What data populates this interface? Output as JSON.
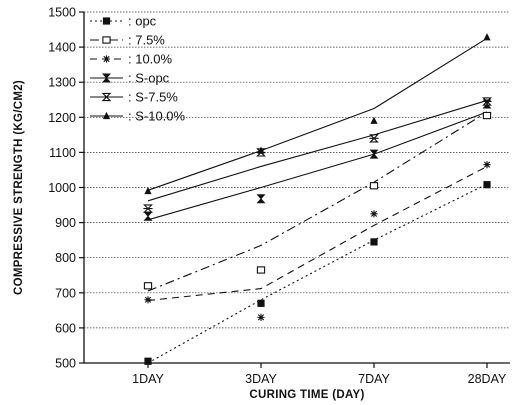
{
  "chart_data": {
    "type": "line",
    "title": "",
    "xlabel": "CURING TIME (DAY)",
    "ylabel": "COMPRESSIVE STRENGTH (KG/CM2)",
    "ylim": [
      500,
      1500
    ],
    "y_ticks": [
      500,
      600,
      700,
      800,
      900,
      1000,
      1100,
      1200,
      1300,
      1400,
      1500
    ],
    "categories": [
      "1DAY",
      "3DAY",
      "7DAY",
      "28DAY"
    ],
    "grid": true,
    "legend_position": "top-left",
    "series": [
      {
        "name": "opc",
        "legend_label": ": opc",
        "marker": "square-filled",
        "line": "dotted",
        "values": [
          505,
          670,
          845,
          1008
        ],
        "fit": [
          500,
          680,
          850,
          1010
        ]
      },
      {
        "name": "7.5%",
        "legend_label": ": 7.5%",
        "marker": "square-open",
        "line": "dash-dot",
        "values": [
          720,
          765,
          1005,
          1205
        ],
        "fit": [
          705,
          835,
          1015,
          1215
        ]
      },
      {
        "name": "10.0%",
        "legend_label": ": 10.0%",
        "marker": "asterisk",
        "line": "dashed",
        "values": [
          680,
          630,
          925,
          1065
        ],
        "fit": [
          678,
          712,
          892,
          1060
        ]
      },
      {
        "name": "S-opc",
        "legend_label": ": S-opc",
        "marker": "hourglass",
        "line": "solid",
        "values": [
          918,
          968,
          1095,
          1238
        ],
        "fit": [
          908,
          1000,
          1095,
          1215
        ]
      },
      {
        "name": "S-7.5%",
        "legend_label": ": S-7.5%",
        "marker": "hourglass-open",
        "line": "solid",
        "values": [
          940,
          1100,
          1140,
          1245
        ],
        "fit": [
          962,
          1060,
          1150,
          1248
        ]
      },
      {
        "name": "S-10.0%",
        "legend_label": ": S-10.0%",
        "marker": "triangle-filled",
        "line": "solid",
        "values": [
          990,
          1105,
          1190,
          1428
        ],
        "fit": [
          992,
          1105,
          1225,
          1425
        ]
      }
    ]
  }
}
